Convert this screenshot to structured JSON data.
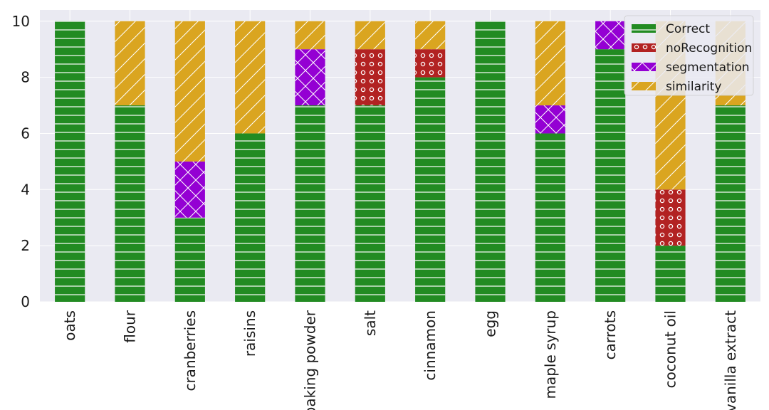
{
  "chart_data": {
    "type": "bar",
    "stacked": true,
    "title": "",
    "xlabel": "",
    "ylabel": "",
    "ylim": [
      0,
      10.4
    ],
    "yticks": [
      0,
      2,
      4,
      6,
      8,
      10
    ],
    "grid": true,
    "legend_position": "top-right",
    "categories": [
      "oats",
      "flour",
      "cranberries",
      "raisins",
      "baking powder",
      "salt",
      "cinnamon",
      "egg",
      "maple syrup",
      "carrots",
      "coconut oil",
      "vanilla extract"
    ],
    "series": [
      {
        "name": "Correct",
        "color": "#228b22",
        "hatch": "horizontal-lines",
        "values": [
          10,
          7,
          3,
          6,
          7,
          7,
          8,
          10,
          6,
          9,
          2,
          7
        ]
      },
      {
        "name": "noRecognition",
        "color": "#b22222",
        "hatch": "circles",
        "values": [
          0,
          0,
          0,
          0,
          0,
          2,
          1,
          0,
          0,
          0,
          2,
          0
        ]
      },
      {
        "name": "segmentation",
        "color": "#9400d3",
        "hatch": "crosshatch",
        "values": [
          0,
          0,
          2,
          0,
          2,
          0,
          0,
          0,
          1,
          1,
          0,
          0
        ]
      },
      {
        "name": "similarity",
        "color": "#daa520",
        "hatch": "diagonal-lines",
        "values": [
          0,
          3,
          5,
          4,
          1,
          1,
          1,
          0,
          3,
          0,
          6,
          3
        ]
      }
    ]
  }
}
